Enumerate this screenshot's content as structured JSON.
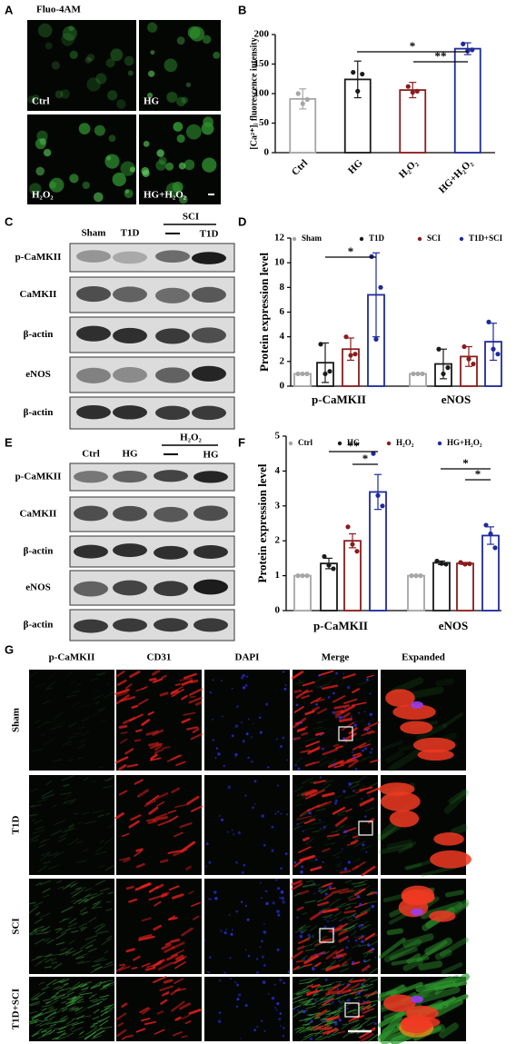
{
  "figure": {
    "panel_letters": [
      "A",
      "B",
      "C",
      "D",
      "E",
      "F",
      "G"
    ]
  },
  "panel_a": {
    "title": "Fluo-4AM",
    "labels": [
      "Ctrl",
      "HG",
      "H₂O₂",
      "HG+H₂O₂"
    ]
  },
  "panel_c": {
    "lanes": [
      "Sham",
      "T1D"
    ],
    "group": "SCI",
    "group_lanes": [
      "T1D"
    ],
    "rows": [
      "p-CaMKII",
      "CaMKII",
      "β-actin",
      "eNOS",
      "β-actin"
    ]
  },
  "panel_e": {
    "lanes": [
      "Ctrl",
      "HG"
    ],
    "group": "H₂O₂",
    "group_lanes": [
      "HG"
    ],
    "rows": [
      "p-CaMKII",
      "CaMKII",
      "β-actin",
      "eNOS",
      "β-actin"
    ]
  },
  "panel_g": {
    "columns": [
      "p-CaMKII",
      "CD31",
      "DAPI",
      "Merge",
      "Expanded"
    ],
    "rows": [
      "Sham",
      "T1D",
      "SCI",
      "T1D+SCI"
    ]
  },
  "chart_data": [
    {
      "type": "bar",
      "ylabel": "[Ca²⁺]ᵢ fluorescence intensity",
      "categories": [
        "Ctrl",
        "HG",
        "H₂O₂",
        "HG+H₂O₂"
      ],
      "values": [
        91,
        124,
        106,
        176
      ],
      "errors": [
        17,
        31,
        13,
        10
      ],
      "points": [
        [
          100,
          83,
          90
        ],
        [
          136,
          104,
          133
        ],
        [
          112,
          102,
          104
        ],
        [
          184,
          172,
          174
        ]
      ],
      "colors": [
        "#a6a6a6",
        "#1a1a1a",
        "#8b1c1c",
        "#1f2a9c"
      ],
      "ylim": [
        0,
        200
      ],
      "yticks": [
        0,
        50,
        100,
        150,
        200
      ],
      "annotations": [
        "*",
        "**"
      ]
    },
    {
      "type": "grouped_bar",
      "ylabel": "Protein expression level",
      "groups": [
        "p-CaMKII",
        "eNOS"
      ],
      "series": [
        {
          "name": "Sham",
          "color": "#a6a6a6",
          "values": [
            1.0,
            1.0
          ],
          "errors": [
            0,
            0
          ],
          "points": [
            [
              1,
              1,
              1
            ],
            [
              1,
              1,
              1
            ]
          ]
        },
        {
          "name": "T1D",
          "color": "#1a1a1a",
          "values": [
            1.9,
            1.8
          ],
          "errors": [
            1.6,
            1.2
          ],
          "points": [
            [
              3.4,
              1.0,
              1.2
            ],
            [
              3.0,
              1.0,
              1.5
            ]
          ]
        },
        {
          "name": "SCI",
          "color": "#8b1c1c",
          "values": [
            3.0,
            2.4
          ],
          "errors": [
            0.9,
            0.8
          ],
          "points": [
            [
              4.0,
              2.5,
              2.6
            ],
            [
              3.2,
              2.2,
              1.8
            ]
          ]
        },
        {
          "name": "T1D+SCI",
          "color": "#1f2a9c",
          "values": [
            7.4,
            3.6
          ],
          "errors": [
            3.4,
            1.5
          ],
          "points": [
            [
              10.5,
              3.8,
              8.0
            ],
            [
              5.2,
              3.0,
              2.6
            ]
          ]
        }
      ],
      "ylim": [
        0,
        12
      ],
      "yticks": [
        0,
        2,
        4,
        6,
        8,
        10,
        12
      ],
      "annotations": [
        "*"
      ]
    },
    {
      "type": "grouped_bar",
      "ylabel": "Protein expression level",
      "groups": [
        "p-CaMKII",
        "eNOS"
      ],
      "series": [
        {
          "name": "Ctrl",
          "color": "#a6a6a6",
          "values": [
            1.0,
            1.0
          ],
          "errors": [
            0,
            0
          ],
          "points": [
            [
              1,
              1,
              1
            ],
            [
              1,
              1,
              1
            ]
          ]
        },
        {
          "name": "HG",
          "color": "#1a1a1a",
          "values": [
            1.35,
            1.37
          ],
          "errors": [
            0.15,
            0.05
          ],
          "points": [
            [
              1.55,
              1.3,
              1.2
            ],
            [
              1.42,
              1.35,
              1.33
            ]
          ]
        },
        {
          "name": "H₂O₂",
          "color": "#8b1c1c",
          "values": [
            2.0,
            1.35
          ],
          "errors": [
            0.2,
            0.03
          ],
          "points": [
            [
              2.4,
              1.9,
              1.7
            ],
            [
              1.38,
              1.33,
              1.34
            ]
          ]
        },
        {
          "name": "HG+H₂O₂",
          "color": "#1f2a9c",
          "values": [
            3.4,
            2.15
          ],
          "errors": [
            0.5,
            0.25
          ],
          "points": [
            [
              4.5,
              3.3,
              3.0
            ],
            [
              2.45,
              2.2,
              1.8
            ]
          ]
        }
      ],
      "ylim": [
        0,
        5
      ],
      "yticks": [
        0,
        1,
        2,
        3,
        4,
        5
      ],
      "annotations": [
        "**",
        "*",
        "*",
        "*"
      ]
    }
  ]
}
